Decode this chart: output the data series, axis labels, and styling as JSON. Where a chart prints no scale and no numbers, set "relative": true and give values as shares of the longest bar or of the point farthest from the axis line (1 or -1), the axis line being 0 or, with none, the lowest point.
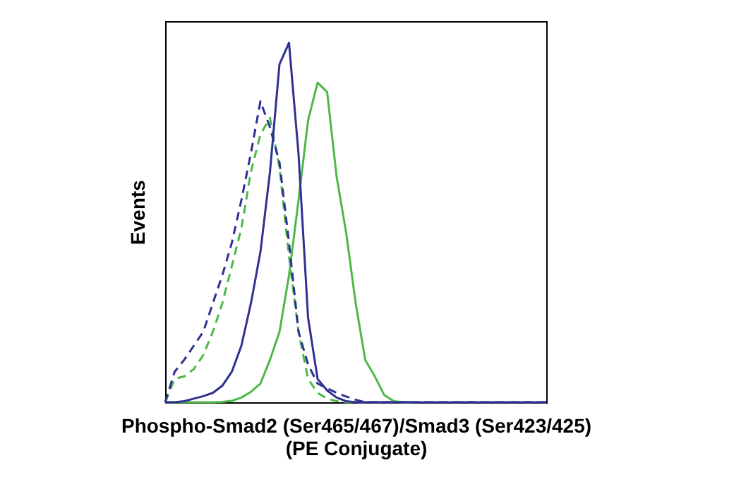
{
  "chart_data": {
    "type": "line",
    "relative": true,
    "tick_labels": false,
    "grid": false,
    "xlabel": "Phospho-Smad2 (Ser465/467)/Smad3 (Ser423/425)\n(PE Conjugate)",
    "ylabel": "Events",
    "categories": [
      null,
      null,
      null,
      null,
      null,
      null,
      null,
      null,
      null,
      null,
      null,
      null,
      null,
      null,
      null,
      null,
      null,
      null,
      null,
      null,
      null,
      null,
      null,
      null,
      null,
      null,
      null,
      null,
      null,
      null,
      null,
      null,
      null,
      null,
      null,
      null,
      null,
      null,
      null,
      null,
      null
    ],
    "series": [
      {
        "color": "#4db848",
        "line_style": "solid",
        "values": [
          0,
          0,
          0,
          0,
          0,
          0,
          0.001,
          0.004,
          0.013,
          0.029,
          0.052,
          0.118,
          0.196,
          0.353,
          0.562,
          0.784,
          0.889,
          0.863,
          0.627,
          0.471,
          0.275,
          0.118,
          0.072,
          0.02,
          0.003,
          0,
          0,
          null,
          null,
          null,
          null,
          null,
          null,
          null,
          null,
          null,
          null,
          null,
          null,
          null,
          null
        ]
      },
      {
        "color": "#4db848",
        "line_style": "dashed",
        "values": [
          0,
          0.065,
          0.072,
          0.092,
          0.131,
          0.196,
          0.275,
          0.379,
          0.484,
          0.641,
          0.745,
          0.791,
          0.654,
          0.405,
          0.196,
          0.065,
          0.026,
          0.01,
          0.003,
          0,
          0,
          0,
          0,
          0,
          0,
          0,
          0,
          null,
          null,
          null,
          null,
          null,
          null,
          null,
          null,
          null,
          null,
          null,
          null,
          null,
          null
        ]
      },
      {
        "color": "#2e3192",
        "line_style": "dashed",
        "values": [
          0,
          0.085,
          0.118,
          0.157,
          0.196,
          0.275,
          0.353,
          0.444,
          0.562,
          0.693,
          0.837,
          0.765,
          0.667,
          0.444,
          0.196,
          0.105,
          0.052,
          0.039,
          0.026,
          0.016,
          0.007,
          0,
          0,
          0,
          0,
          0,
          0,
          0,
          0,
          0,
          0,
          0,
          0,
          0,
          0,
          0,
          0,
          0,
          0,
          0,
          0
        ]
      },
      {
        "color": "#2e3192",
        "line_style": "solid",
        "values": [
          0,
          0,
          0.003,
          0.01,
          0.017,
          0.026,
          0.046,
          0.085,
          0.157,
          0.275,
          0.418,
          0.64,
          0.94,
          1.0,
          0.69,
          0.235,
          0.065,
          0.033,
          0.013,
          0.003,
          0,
          0,
          0,
          0,
          0,
          0,
          0,
          0,
          0,
          0,
          0,
          0,
          0,
          0,
          0,
          0,
          0,
          0,
          0,
          0,
          0
        ]
      }
    ]
  }
}
